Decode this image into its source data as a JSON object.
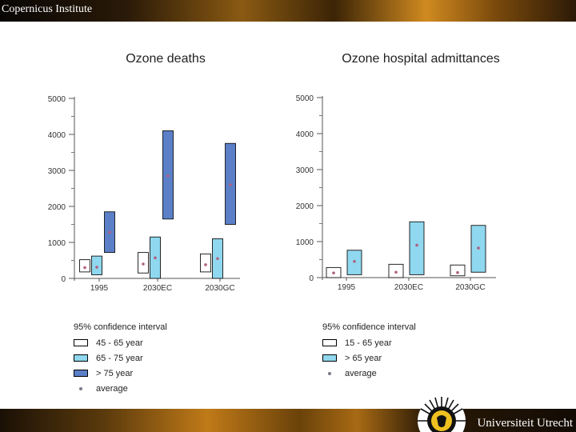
{
  "header": {
    "title": "Copernicus Institute"
  },
  "footer": {
    "university": "Universiteit Utrecht"
  },
  "colors": {
    "white_box": "#ffffff",
    "light_blue": "#8fd8ef",
    "dark_blue": "#5b80c8",
    "average_dot": "#b06080"
  },
  "chart_data": [
    {
      "type": "bar",
      "title": "Ozone deaths",
      "ylim": [
        0,
        5000
      ],
      "yticks": [
        0,
        1000,
        2000,
        3000,
        4000,
        5000
      ],
      "categories": [
        "1995",
        "2030EC",
        "2030GC"
      ],
      "series": [
        {
          "name": "45 - 65 year",
          "color": "#ffffff",
          "ranges": [
            [
              180,
              520
            ],
            [
              150,
              720
            ],
            [
              180,
              680
            ]
          ],
          "average": [
            300,
            400,
            380
          ]
        },
        {
          "name": "65 - 75 year",
          "color": "#8fd8ef",
          "ranges": [
            [
              100,
              620
            ],
            [
              0,
              1150
            ],
            [
              0,
              1100
            ]
          ],
          "average": [
            310,
            570,
            550
          ]
        },
        {
          "name": "> 75 year",
          "color": "#5b80c8",
          "ranges": [
            [
              720,
              1850
            ],
            [
              1650,
              4100
            ],
            [
              1500,
              3750
            ]
          ],
          "average": [
            1280,
            2850,
            2600
          ]
        }
      ],
      "legend": {
        "title": "95% confidence interval",
        "entries": [
          "45 - 65 year",
          "65 - 75 year",
          "> 75 year",
          "average"
        ]
      }
    },
    {
      "type": "bar",
      "title": "Ozone hospital admittances",
      "ylim": [
        0,
        5000
      ],
      "yticks": [
        0,
        1000,
        2000,
        3000,
        4000,
        5000
      ],
      "categories": [
        "1995",
        "2030EC",
        "2030GC"
      ],
      "series": [
        {
          "name": "15 - 65 year",
          "color": "#ffffff",
          "ranges": [
            [
              0,
              280
            ],
            [
              0,
              370
            ],
            [
              50,
              350
            ]
          ],
          "average": [
            130,
            150,
            140
          ]
        },
        {
          "name": "> 65 year",
          "color": "#8fd8ef",
          "ranges": [
            [
              80,
              760
            ],
            [
              80,
              1550
            ],
            [
              150,
              1450
            ]
          ],
          "average": [
            450,
            900,
            820
          ]
        }
      ],
      "legend": {
        "title": "95% confidence interval",
        "entries": [
          "15 - 65 year",
          "> 65 year",
          "average"
        ]
      }
    }
  ]
}
